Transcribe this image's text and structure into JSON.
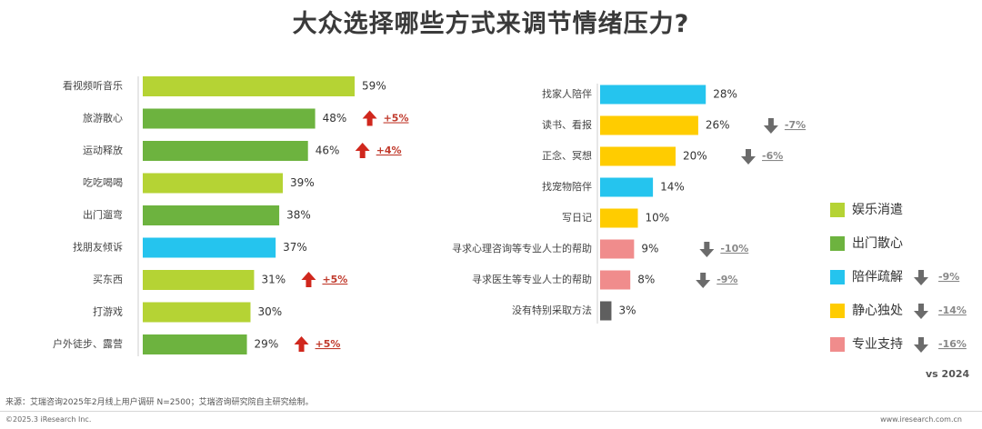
{
  "title": "大众选择哪些方式来调节情绪压力?",
  "colors": {
    "娱乐消遣": "#b5d334",
    "出门散心": "#6db33f",
    "陪伴疏解": "#25c4ee",
    "静心独处": "#ffcc00",
    "专业支持": "#f08c8c",
    "other": "#5f5f5f",
    "up": "#d0271d",
    "down": "#6b6b6b",
    "up_text": "#c0392b",
    "down_text": "#888888"
  },
  "chart_data": [
    {
      "type": "bar",
      "orientation": "horizontal",
      "categories": [
        "看视频听音乐",
        "旅游散心",
        "运动释放",
        "吃吃喝喝",
        "出门遛弯",
        "找朋友倾诉",
        "买东西",
        "打游戏",
        "户外徒步、露营"
      ],
      "values": [
        59,
        48,
        46,
        39,
        38,
        37,
        31,
        30,
        29
      ],
      "value_labels": [
        "59%",
        "48%",
        "46%",
        "39%",
        "38%",
        "37%",
        "31%",
        "30%",
        "29%"
      ],
      "groups": [
        "娱乐消遣",
        "出门散心",
        "出门散心",
        "娱乐消遣",
        "出门散心",
        "陪伴疏解",
        "娱乐消遣",
        "娱乐消遣",
        "出门散心"
      ],
      "changes": [
        null,
        "+5%",
        "+4%",
        null,
        null,
        null,
        "+5%",
        null,
        "+5%"
      ],
      "change_dirs": [
        null,
        "up",
        "up",
        null,
        null,
        null,
        "up",
        null,
        "up"
      ],
      "unit": "%"
    },
    {
      "type": "bar",
      "orientation": "horizontal",
      "categories": [
        "找家人陪伴",
        "读书、看报",
        "正念、冥想",
        "找宠物陪伴",
        "写日记",
        "寻求心理咨询等专业人士的帮助",
        "寻求医生等专业人士的帮助",
        "没有特别采取方法"
      ],
      "values": [
        28,
        26,
        20,
        14,
        10,
        9,
        8,
        3
      ],
      "value_labels": [
        "28%",
        "26%",
        "20%",
        "14%",
        "10%",
        "9%",
        "8%",
        "3%"
      ],
      "groups": [
        "陪伴疏解",
        "静心独处",
        "静心独处",
        "陪伴疏解",
        "静心独处",
        "专业支持",
        "专业支持",
        "other"
      ],
      "changes": [
        null,
        "-7%",
        "-6%",
        null,
        null,
        "-10%",
        "-9%",
        null
      ],
      "change_dirs": [
        null,
        "down",
        "down",
        null,
        null,
        "down",
        "down",
        null
      ],
      "unit": "%"
    }
  ],
  "legend": [
    {
      "label": "娱乐消遣",
      "key": "娱乐消遣",
      "change": "",
      "dir": ""
    },
    {
      "label": "出门散心",
      "key": "出门散心",
      "change": "",
      "dir": ""
    },
    {
      "label": "陪伴疏解",
      "key": "陪伴疏解",
      "change": "-9%",
      "dir": "down"
    },
    {
      "label": "静心独处",
      "key": "静心独处",
      "change": "-14%",
      "dir": "down"
    },
    {
      "label": "专业支持",
      "key": "专业支持",
      "change": "-16%",
      "dir": "down"
    }
  ],
  "comparison_note": "vs 2024",
  "source": "来源：艾瑞咨询2025年2月线上用户调研 N=2500；艾瑞咨询研究院自主研究绘制。",
  "copyright": "©2025.3 iResearch Inc.",
  "website": "www.iresearch.com.cn"
}
